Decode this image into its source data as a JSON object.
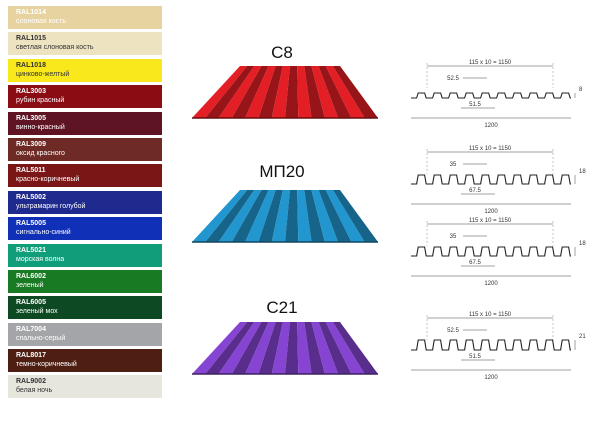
{
  "colors": [
    {
      "code": "RAL1014",
      "name": "слоновая кость",
      "hex": "#e6d3a0",
      "text": "#ffffff"
    },
    {
      "code": "RAL1015",
      "name": "светлая слоновая кость",
      "hex": "#ede3c1",
      "text": "#333333"
    },
    {
      "code": "RAL1018",
      "name": "цинково-желтый",
      "hex": "#f8e81c",
      "text": "#333333"
    },
    {
      "code": "RAL3003",
      "name": "рубин красный",
      "hex": "#8c0c14",
      "text": "#ffffff"
    },
    {
      "code": "RAL3005",
      "name": "винно-красный",
      "hex": "#5e1422",
      "text": "#ffffff"
    },
    {
      "code": "RAL3009",
      "name": "оксид красного",
      "hex": "#6e2a24",
      "text": "#ffffff"
    },
    {
      "code": "RAL5011",
      "name": "красно-коричневый",
      "hex": "#7a1616",
      "text": "#ffffff"
    },
    {
      "code": "RAL5002",
      "name": "ультрамарин голубой",
      "hex": "#1f2a8e",
      "text": "#ffffff"
    },
    {
      "code": "RAL5005",
      "name": "сигнально-синий",
      "hex": "#1030b8",
      "text": "#ffffff"
    },
    {
      "code": "RAL5021",
      "name": "морская волна",
      "hex": "#0f9d7a",
      "text": "#ffffff"
    },
    {
      "code": "RAL6002",
      "name": "зеленый",
      "hex": "#187a22",
      "text": "#ffffff"
    },
    {
      "code": "RAL6005",
      "name": "зеленый мох",
      "hex": "#0d4a24",
      "text": "#ffffff"
    },
    {
      "code": "RAL7004",
      "name": "спально-серый",
      "hex": "#a3a5a8",
      "text": "#ffffff"
    },
    {
      "code": "RAL8017",
      "name": "темно-коричневый",
      "hex": "#4e1e12",
      "text": "#ffffff"
    },
    {
      "code": "RAL9002",
      "name": "белая ночь",
      "hex": "#e7e6dc",
      "text": "#333333"
    }
  ],
  "profiles": [
    {
      "title": "С8",
      "color": "#d21c22",
      "total": "115 x 10 = 1150",
      "rib": "52.5",
      "valley": "51.5",
      "height": "8",
      "width": "1200"
    },
    {
      "title": "МП20",
      "color": "#1f8bc0",
      "total": "115 x 10 = 1150",
      "rib": "35",
      "valley": "67.5",
      "height": "18",
      "width": "1200"
    },
    {
      "title": "",
      "color": "",
      "total": "115 x 10 = 1150",
      "rib": "35",
      "valley": "67.5",
      "height": "18",
      "width": "1200"
    },
    {
      "title": "С21",
      "color": "#7b3fc2",
      "total": "115 x 10 = 1150",
      "rib": "52.5",
      "valley": "51.5",
      "height": "21",
      "width": "1200"
    }
  ]
}
